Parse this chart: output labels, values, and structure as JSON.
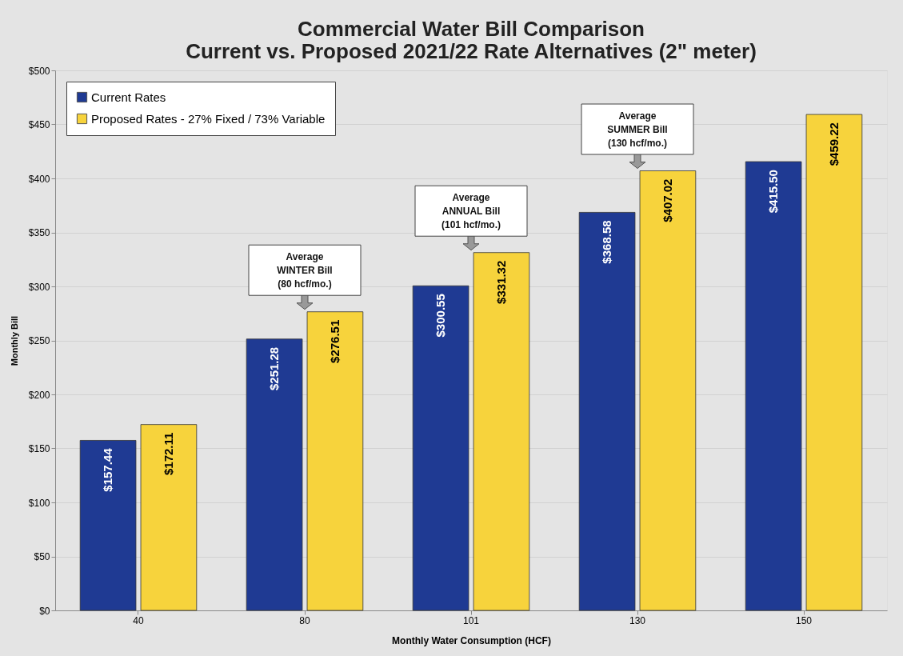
{
  "chart_data": {
    "type": "bar",
    "title": [
      "Commercial Water Bill Comparison",
      "Current vs. Proposed 2021/22 Rate Alternatives (2\" meter)"
    ],
    "xlabel": "Monthly Water Consumption (HCF)",
    "ylabel": "Monthly Bill",
    "categories": [
      "40",
      "80",
      "101",
      "130",
      "150"
    ],
    "series": [
      {
        "name": "Current Rates",
        "color": "#1f3a93",
        "values": [
          157.44,
          251.28,
          300.55,
          368.58,
          415.5
        ],
        "value_labels": [
          "$157.44",
          "$251.28",
          "$300.55",
          "$368.58",
          "$415.50"
        ]
      },
      {
        "name": "Proposed Rates - 27% Fixed / 73% Variable",
        "color": "#f7d33c",
        "values": [
          172.11,
          276.51,
          331.32,
          407.02,
          459.22
        ],
        "value_labels": [
          "$172.11",
          "$276.51",
          "$331.32",
          "$407.02",
          "$459.22"
        ]
      }
    ],
    "ylim": [
      0,
      500
    ],
    "yticks": [
      {
        "value": 0,
        "label": "$0"
      },
      {
        "value": 50,
        "label": "$50"
      },
      {
        "value": 100,
        "label": "$100"
      },
      {
        "value": 150,
        "label": "$150"
      },
      {
        "value": 200,
        "label": "$200"
      },
      {
        "value": 250,
        "label": "$250"
      },
      {
        "value": 300,
        "label": "$300"
      },
      {
        "value": 350,
        "label": "$350"
      },
      {
        "value": 400,
        "label": "$400"
      },
      {
        "value": 450,
        "label": "$450"
      },
      {
        "value": 500,
        "label": "$500"
      }
    ],
    "grid": "y",
    "legend": "top left",
    "annotations": [
      {
        "text": "Average\nWINTER Bill\n(80 hcf/mo.)",
        "x": "80",
        "y": 276.51
      },
      {
        "text": "Average\nANNUAL Bill\n(101 hcf/mo.)",
        "x": "101",
        "y": 331.32
      },
      {
        "text": "Average\nSUMMER Bill\n(130 hcf/mo.)",
        "x": "130",
        "y": 407.02
      }
    ]
  }
}
